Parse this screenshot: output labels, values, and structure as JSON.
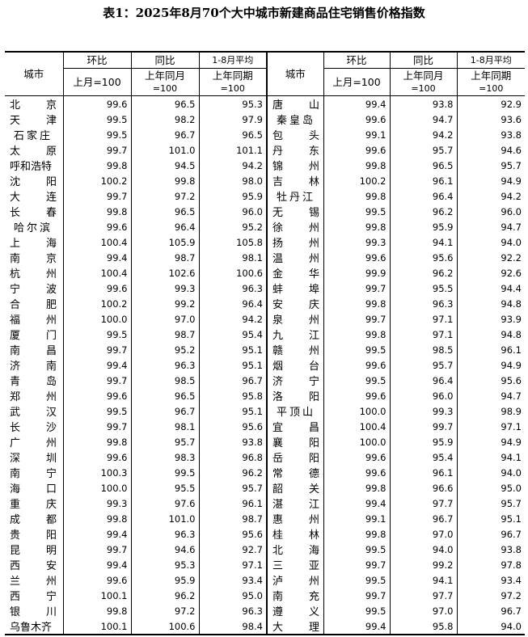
{
  "title": "表1：2025年8月70个大中城市新建商品住宅销售价格指数",
  "header": {
    "city": "城市",
    "mom": "环比",
    "yoy": "同比",
    "avg": "1-8月平均",
    "mom_base": "上月=100",
    "yoy_base_1": "上年同月",
    "yoy_base_2": "=100",
    "avg_base_1": "上年同期",
    "avg_base_2": "=100"
  },
  "left": [
    [
      "北京",
      "99.6",
      "96.5",
      "95.3"
    ],
    [
      "天津",
      "99.5",
      "98.2",
      "97.9"
    ],
    [
      "石家庄",
      "99.5",
      "96.7",
      "96.5"
    ],
    [
      "太原",
      "99.7",
      "101.0",
      "101.1"
    ],
    [
      "呼和浩特",
      "99.8",
      "94.5",
      "94.2"
    ],
    [
      "沈阳",
      "100.2",
      "99.8",
      "98.0"
    ],
    [
      "大连",
      "99.7",
      "97.2",
      "95.9"
    ],
    [
      "长春",
      "99.8",
      "96.5",
      "96.0"
    ],
    [
      "哈尔滨",
      "99.6",
      "96.4",
      "95.2"
    ],
    [
      "上海",
      "100.4",
      "105.9",
      "105.8"
    ],
    [
      "南京",
      "99.4",
      "98.7",
      "98.1"
    ],
    [
      "杭州",
      "100.4",
      "102.6",
      "100.6"
    ],
    [
      "宁波",
      "99.6",
      "99.3",
      "96.3"
    ],
    [
      "合肥",
      "100.2",
      "99.2",
      "96.4"
    ],
    [
      "福州",
      "100.0",
      "97.0",
      "94.2"
    ],
    [
      "厦门",
      "99.5",
      "98.7",
      "95.4"
    ],
    [
      "南昌",
      "99.7",
      "95.2",
      "95.1"
    ],
    [
      "济南",
      "99.4",
      "96.3",
      "95.1"
    ],
    [
      "青岛",
      "99.7",
      "98.5",
      "96.7"
    ],
    [
      "郑州",
      "99.6",
      "96.5",
      "95.8"
    ],
    [
      "武汉",
      "99.5",
      "96.7",
      "95.1"
    ],
    [
      "长沙",
      "99.7",
      "98.1",
      "95.6"
    ],
    [
      "广州",
      "99.8",
      "95.7",
      "93.8"
    ],
    [
      "深圳",
      "99.6",
      "98.3",
      "96.8"
    ],
    [
      "南宁",
      "100.3",
      "99.5",
      "96.2"
    ],
    [
      "海口",
      "100.0",
      "95.5",
      "95.7"
    ],
    [
      "重庆",
      "99.3",
      "97.6",
      "96.1"
    ],
    [
      "成都",
      "99.8",
      "101.0",
      "98.7"
    ],
    [
      "贵阳",
      "99.4",
      "96.3",
      "95.6"
    ],
    [
      "昆明",
      "99.7",
      "94.6",
      "92.7"
    ],
    [
      "西安",
      "99.4",
      "95.3",
      "97.1"
    ],
    [
      "兰州",
      "99.6",
      "95.9",
      "93.4"
    ],
    [
      "西宁",
      "100.1",
      "96.2",
      "95.0"
    ],
    [
      "银川",
      "99.8",
      "97.2",
      "96.3"
    ],
    [
      "乌鲁木齐",
      "100.1",
      "100.6",
      "98.4"
    ]
  ],
  "right": [
    [
      "唐山",
      "99.4",
      "93.8",
      "92.9"
    ],
    [
      "秦皇岛",
      "99.6",
      "94.7",
      "93.6"
    ],
    [
      "包头",
      "99.1",
      "94.2",
      "93.8"
    ],
    [
      "丹东",
      "99.6",
      "95.7",
      "94.6"
    ],
    [
      "锦州",
      "99.8",
      "96.5",
      "95.7"
    ],
    [
      "吉林",
      "100.2",
      "96.1",
      "94.9"
    ],
    [
      "牡丹江",
      "99.8",
      "96.4",
      "94.2"
    ],
    [
      "无锡",
      "99.5",
      "96.2",
      "96.0"
    ],
    [
      "徐州",
      "99.8",
      "95.9",
      "94.7"
    ],
    [
      "扬州",
      "99.3",
      "94.1",
      "94.0"
    ],
    [
      "温州",
      "99.6",
      "95.6",
      "92.2"
    ],
    [
      "金华",
      "99.9",
      "96.2",
      "92.6"
    ],
    [
      "蚌埠",
      "99.7",
      "95.5",
      "94.4"
    ],
    [
      "安庆",
      "99.8",
      "96.3",
      "94.8"
    ],
    [
      "泉州",
      "99.7",
      "97.1",
      "93.9"
    ],
    [
      "九江",
      "99.8",
      "97.1",
      "94.8"
    ],
    [
      "赣州",
      "99.5",
      "98.5",
      "96.1"
    ],
    [
      "烟台",
      "99.6",
      "95.7",
      "94.9"
    ],
    [
      "济宁",
      "99.5",
      "96.4",
      "95.6"
    ],
    [
      "洛阳",
      "99.6",
      "96.0",
      "94.7"
    ],
    [
      "平顶山",
      "100.0",
      "99.3",
      "98.9"
    ],
    [
      "宜昌",
      "100.4",
      "99.7",
      "97.1"
    ],
    [
      "襄阳",
      "100.0",
      "95.9",
      "94.9"
    ],
    [
      "岳阳",
      "99.6",
      "95.4",
      "94.1"
    ],
    [
      "常德",
      "99.6",
      "96.1",
      "94.0"
    ],
    [
      "韶关",
      "99.8",
      "96.6",
      "95.0"
    ],
    [
      "湛江",
      "99.4",
      "97.7",
      "95.7"
    ],
    [
      "惠州",
      "99.1",
      "96.7",
      "95.1"
    ],
    [
      "桂林",
      "99.8",
      "97.0",
      "96.7"
    ],
    [
      "北海",
      "99.5",
      "94.0",
      "93.8"
    ],
    [
      "三亚",
      "99.7",
      "99.2",
      "97.8"
    ],
    [
      "泸州",
      "99.5",
      "94.1",
      "93.4"
    ],
    [
      "南充",
      "99.7",
      "97.7",
      "97.2"
    ],
    [
      "遵义",
      "99.5",
      "97.0",
      "96.7"
    ],
    [
      "大理",
      "99.4",
      "95.8",
      "94.0"
    ]
  ]
}
